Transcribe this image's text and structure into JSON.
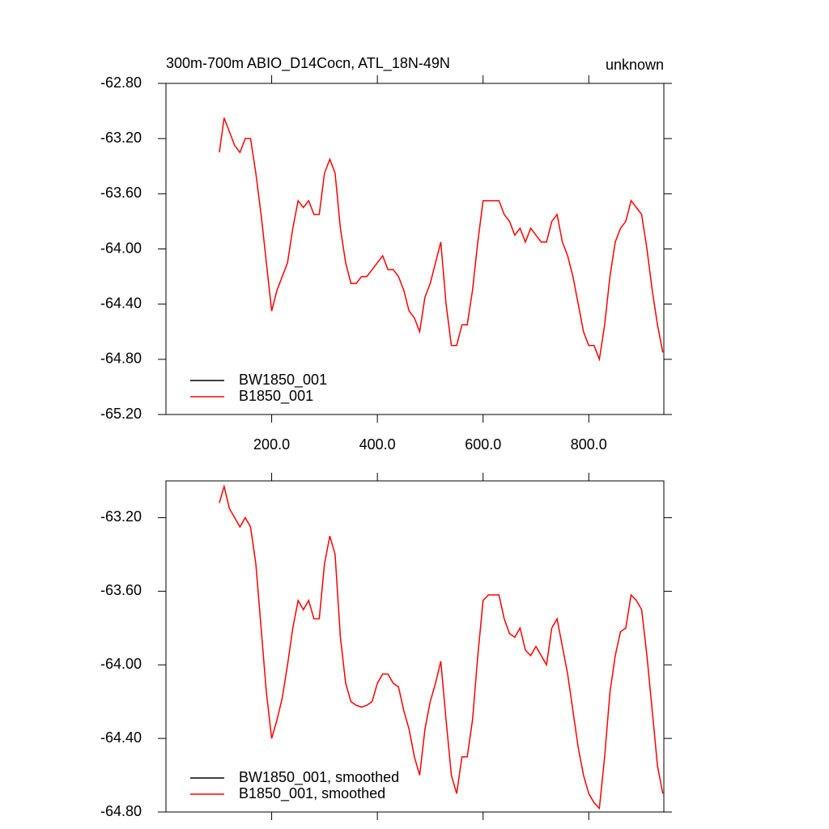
{
  "chart_data": [
    {
      "type": "line",
      "title": "300m-700m ABIO_D14Cocn, ATL_18N-49N",
      "subtitle": "unknown",
      "x": [
        101,
        110,
        120,
        130,
        140,
        150,
        160,
        170,
        180,
        190,
        200,
        210,
        220,
        230,
        240,
        250,
        260,
        270,
        280,
        290,
        300,
        310,
        320,
        330,
        340,
        350,
        360,
        370,
        380,
        390,
        400,
        410,
        420,
        430,
        440,
        450,
        460,
        470,
        480,
        490,
        500,
        510,
        520,
        530,
        540,
        550,
        560,
        570,
        580,
        590,
        600,
        610,
        620,
        630,
        640,
        650,
        660,
        670,
        680,
        690,
        700,
        710,
        720,
        730,
        740,
        750,
        760,
        770,
        780,
        790,
        800,
        810,
        820,
        830,
        840,
        850,
        860,
        870,
        880,
        890,
        900,
        910,
        920,
        930,
        940
      ],
      "series": [
        {
          "name": "BW1850_001",
          "color": "#000000",
          "values": [
            null,
            null,
            null,
            null,
            null,
            null,
            null,
            null,
            null,
            null,
            null,
            null,
            null,
            null,
            null,
            null,
            null,
            null,
            null,
            null,
            null,
            null,
            null,
            null,
            null,
            null,
            null,
            null,
            null,
            null,
            null,
            null,
            null,
            null,
            null,
            null,
            null,
            null,
            null,
            null,
            null,
            null,
            null,
            null,
            null,
            null,
            null,
            null,
            null,
            null,
            null,
            null,
            null,
            null,
            null,
            null,
            null,
            null,
            null,
            null,
            null,
            null,
            null,
            null,
            null,
            null,
            null,
            null,
            null,
            null,
            null,
            null,
            null,
            null,
            null,
            null,
            null,
            null,
            null,
            null,
            null,
            null,
            null,
            null,
            null
          ]
        },
        {
          "name": "B1850_001",
          "color": "#ff0000",
          "values": [
            -63.3,
            -63.05,
            -63.15,
            -63.25,
            -63.3,
            -63.2,
            -63.2,
            -63.45,
            -63.75,
            -64.1,
            -64.45,
            -64.3,
            -64.2,
            -64.1,
            -63.85,
            -63.65,
            -63.7,
            -63.65,
            -63.75,
            -63.75,
            -63.45,
            -63.35,
            -63.45,
            -63.85,
            -64.1,
            -64.25,
            -64.25,
            -64.2,
            -64.2,
            -64.15,
            -64.1,
            -64.05,
            -64.15,
            -64.15,
            -64.2,
            -64.3,
            -64.45,
            -64.5,
            -64.6,
            -64.35,
            -64.25,
            -64.1,
            -63.95,
            -64.4,
            -64.7,
            -64.7,
            -64.55,
            -64.55,
            -64.3,
            -63.95,
            -63.65,
            -63.65,
            -63.65,
            -63.65,
            -63.75,
            -63.8,
            -63.9,
            -63.85,
            -63.95,
            -63.85,
            -63.9,
            -63.95,
            -63.95,
            -63.8,
            -63.75,
            -63.95,
            -64.05,
            -64.2,
            -64.4,
            -64.6,
            -64.7,
            -64.7,
            -64.8,
            -64.55,
            -64.2,
            -63.95,
            -63.85,
            -63.8,
            -63.65,
            -63.7,
            -63.75,
            -64.0,
            -64.3,
            -64.55,
            -64.75
          ]
        }
      ],
      "xlim": [
        0,
        942
      ],
      "xticks": [
        {
          "value": 200,
          "label": "200.0"
        },
        {
          "value": 400,
          "label": "400.0"
        },
        {
          "value": 600,
          "label": "600.0"
        },
        {
          "value": 800,
          "label": "800.0"
        }
      ],
      "ylim": [
        -65.2,
        -62.8
      ],
      "yticks": [
        {
          "value": -62.8,
          "label": "-62.80"
        },
        {
          "value": -63.2,
          "label": "-63.20"
        },
        {
          "value": -63.6,
          "label": "-63.60"
        },
        {
          "value": -64.0,
          "label": "-64.00"
        },
        {
          "value": -64.4,
          "label": "-64.40"
        },
        {
          "value": -64.8,
          "label": "-64.80"
        },
        {
          "value": -65.2,
          "label": "-65.20"
        }
      ],
      "legend": "lower-left"
    },
    {
      "type": "line",
      "x": [
        101,
        110,
        120,
        130,
        140,
        150,
        160,
        170,
        180,
        190,
        200,
        210,
        220,
        230,
        240,
        250,
        260,
        270,
        280,
        290,
        300,
        310,
        320,
        330,
        340,
        350,
        360,
        370,
        380,
        390,
        400,
        410,
        420,
        430,
        440,
        450,
        460,
        470,
        480,
        490,
        500,
        510,
        520,
        530,
        540,
        550,
        560,
        570,
        580,
        590,
        600,
        610,
        620,
        630,
        640,
        650,
        660,
        670,
        680,
        690,
        700,
        710,
        720,
        730,
        740,
        750,
        760,
        770,
        780,
        790,
        800,
        810,
        820,
        830,
        840,
        850,
        860,
        870,
        880,
        890,
        900,
        910,
        920,
        930,
        940
      ],
      "series": [
        {
          "name": "BW1850_001, smoothed",
          "color": "#000000",
          "values": [
            null,
            null,
            null,
            null,
            null,
            null,
            null,
            null,
            null,
            null,
            null,
            null,
            null,
            null,
            null,
            null,
            null,
            null,
            null,
            null,
            null,
            null,
            null,
            null,
            null,
            null,
            null,
            null,
            null,
            null,
            null,
            null,
            null,
            null,
            null,
            null,
            null,
            null,
            null,
            null,
            null,
            null,
            null,
            null,
            null,
            null,
            null,
            null,
            null,
            null,
            null,
            null,
            null,
            null,
            null,
            null,
            null,
            null,
            null,
            null,
            null,
            null,
            null,
            null,
            null,
            null,
            null,
            null,
            null,
            null,
            null,
            null,
            null,
            null,
            null,
            null,
            null,
            null,
            null,
            null,
            null,
            null,
            null,
            null,
            null
          ]
        },
        {
          "name": "B1850_001, smoothed",
          "color": "#ff0000",
          "values": [
            -63.12,
            -63.03,
            -63.15,
            -63.2,
            -63.25,
            -63.2,
            -63.25,
            -63.45,
            -63.8,
            -64.15,
            -64.4,
            -64.3,
            -64.18,
            -64.0,
            -63.8,
            -63.65,
            -63.7,
            -63.65,
            -63.75,
            -63.75,
            -63.45,
            -63.3,
            -63.4,
            -63.85,
            -64.1,
            -64.2,
            -64.22,
            -64.23,
            -64.22,
            -64.2,
            -64.1,
            -64.05,
            -64.05,
            -64.1,
            -64.12,
            -64.25,
            -64.35,
            -64.5,
            -64.6,
            -64.35,
            -64.2,
            -64.1,
            -63.98,
            -64.3,
            -64.6,
            -64.7,
            -64.5,
            -64.5,
            -64.3,
            -63.95,
            -63.65,
            -63.62,
            -63.62,
            -63.62,
            -63.75,
            -63.83,
            -63.85,
            -63.8,
            -63.92,
            -63.95,
            -63.9,
            -63.95,
            -64.0,
            -63.8,
            -63.75,
            -63.9,
            -64.05,
            -64.25,
            -64.45,
            -64.6,
            -64.7,
            -64.75,
            -64.78,
            -64.5,
            -64.15,
            -63.95,
            -63.82,
            -63.8,
            -63.62,
            -63.65,
            -63.7,
            -63.95,
            -64.25,
            -64.55,
            -64.7
          ]
        }
      ],
      "xlim": [
        0,
        942
      ],
      "xticks": [
        200,
        400,
        600,
        800
      ],
      "show_xtick_labels": false,
      "ylim": [
        -64.8,
        -63.0
      ],
      "yticks": [
        {
          "value": -63.2,
          "label": "-63.20"
        },
        {
          "value": -63.6,
          "label": "-63.60"
        },
        {
          "value": -64.0,
          "label": "-64.00"
        },
        {
          "value": -64.4,
          "label": "-64.40"
        },
        {
          "value": -64.8,
          "label": "-64.80"
        }
      ],
      "legend": "lower-left"
    }
  ]
}
